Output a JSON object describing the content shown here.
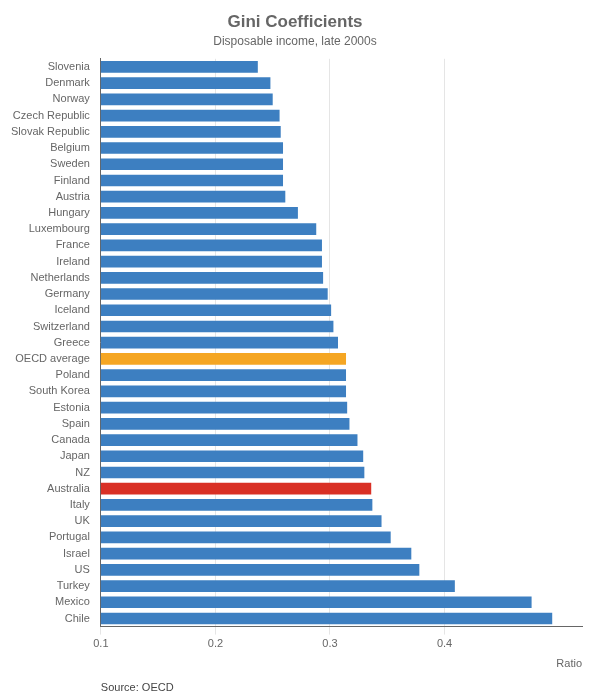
{
  "chart_data": {
    "type": "bar",
    "orientation": "horizontal",
    "title": "Gini Coefficients",
    "subtitle": "Disposable income, late 2000s",
    "annotations": [
      "Source: OECD"
    ],
    "xlabel": "Ratio",
    "categories": [
      "Slovenia",
      "Denmark",
      "Norway",
      "Czech Republic",
      "Slovak Republic",
      "Belgium",
      "Sweden",
      "Finland",
      "Austria",
      "Hungary",
      "Luxembourg",
      "France",
      "Ireland",
      "Netherlands",
      "Germany",
      "Iceland",
      "Switzerland",
      "Greece",
      "OECD average",
      "Poland",
      "South Korea",
      "Estonia",
      "Spain",
      "Canada",
      "Japan",
      "NZ",
      "Australia",
      "Italy",
      "UK",
      "Portugal",
      "Israel",
      "US",
      "Turkey",
      "Mexico",
      "Chile"
    ],
    "values": [
      0.237,
      0.248,
      0.25,
      0.256,
      0.257,
      0.259,
      0.259,
      0.259,
      0.261,
      0.272,
      0.288,
      0.293,
      0.293,
      0.294,
      0.298,
      0.301,
      0.303,
      0.307,
      0.314,
      0.314,
      0.314,
      0.315,
      0.317,
      0.324,
      0.329,
      0.33,
      0.336,
      0.337,
      0.345,
      0.353,
      0.371,
      0.378,
      0.409,
      0.476,
      0.494
    ],
    "colors": [
      "#3d7fc1",
      "#3d7fc1",
      "#3d7fc1",
      "#3d7fc1",
      "#3d7fc1",
      "#3d7fc1",
      "#3d7fc1",
      "#3d7fc1",
      "#3d7fc1",
      "#3d7fc1",
      "#3d7fc1",
      "#3d7fc1",
      "#3d7fc1",
      "#3d7fc1",
      "#3d7fc1",
      "#3d7fc1",
      "#3d7fc1",
      "#3d7fc1",
      "#f5a623",
      "#3d7fc1",
      "#3d7fc1",
      "#3d7fc1",
      "#3d7fc1",
      "#3d7fc1",
      "#3d7fc1",
      "#3d7fc1",
      "#d93025",
      "#3d7fc1",
      "#3d7fc1",
      "#3d7fc1",
      "#3d7fc1",
      "#3d7fc1",
      "#3d7fc1",
      "#3d7fc1",
      "#3d7fc1"
    ],
    "xlim": [
      0.1,
      0.52
    ],
    "xticks": [
      0.1,
      0.2,
      0.3,
      0.4
    ],
    "grid": true
  }
}
